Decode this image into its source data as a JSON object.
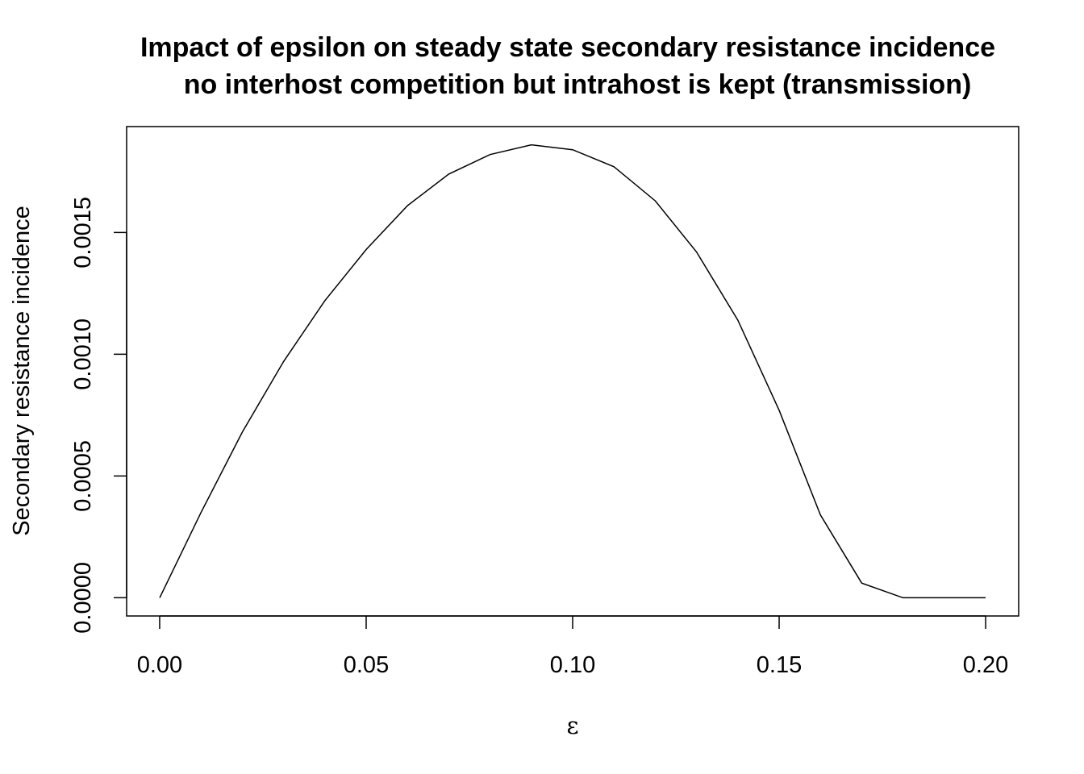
{
  "chart_data": {
    "type": "line",
    "title": "Impact of epsilon on steady state secondary resistance incidence",
    "subtitle": "no interhost competition but intrahost is kept (transmission)",
    "xlabel": "ε",
    "ylabel": "Secondary resistance incidence",
    "xlim": [
      -0.008,
      0.208
    ],
    "ylim": [
      -7.5e-05,
      0.001935
    ],
    "x_ticks": [
      "0.00",
      "0.05",
      "0.10",
      "0.15",
      "0.20"
    ],
    "x_tick_values": [
      0,
      0.05,
      0.1,
      0.15,
      0.2
    ],
    "y_ticks": [
      "0.0000",
      "0.0005",
      "0.0010",
      "0.0015"
    ],
    "y_tick_values": [
      0,
      0.0005,
      0.001,
      0.0015
    ],
    "grid": false,
    "legend": "none",
    "line_color": "#000000",
    "series": [
      {
        "x": [
          0.0,
          0.01,
          0.02,
          0.03,
          0.04,
          0.05,
          0.06,
          0.07,
          0.08,
          0.09,
          0.1,
          0.11,
          0.12,
          0.13,
          0.14,
          0.15,
          0.16,
          0.17,
          0.18,
          0.19,
          0.2
        ],
        "values": [
          0.0,
          0.00035,
          0.00068,
          0.00097,
          0.00122,
          0.00143,
          0.00161,
          0.00174,
          0.00182,
          0.00186,
          0.00184,
          0.00177,
          0.00163,
          0.00142,
          0.00114,
          0.00077,
          0.00034,
          6e-05,
          0.0,
          0.0,
          0.0
        ]
      }
    ]
  }
}
